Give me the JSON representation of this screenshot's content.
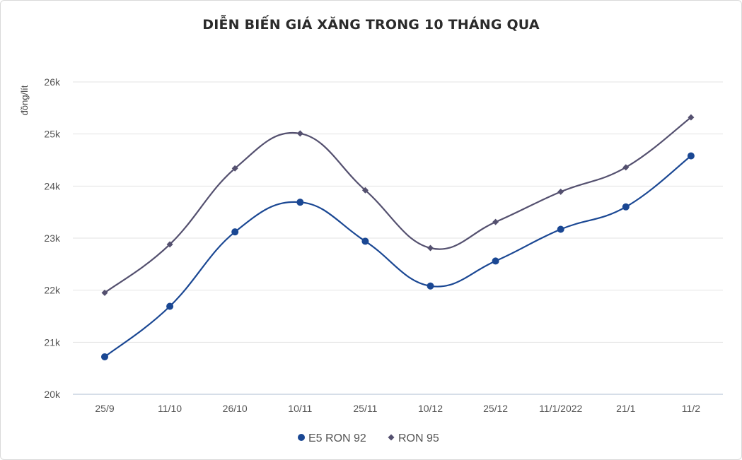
{
  "chart_data": {
    "type": "line",
    "title": "DIỄN BIẾN GIÁ XĂNG TRONG 10 THÁNG QUA",
    "xlabel": "",
    "ylabel": "đồng/lít",
    "categories": [
      "25/9",
      "11/10",
      "26/10",
      "10/11",
      "25/11",
      "10/12",
      "25/12",
      "11/1/2022",
      "21/1",
      "11/2"
    ],
    "ylim": [
      20000,
      26000
    ],
    "yticks": [
      {
        "value": 20000,
        "label": "20k"
      },
      {
        "value": 21000,
        "label": "21k"
      },
      {
        "value": 22000,
        "label": "22k"
      },
      {
        "value": 23000,
        "label": "23k"
      },
      {
        "value": 24000,
        "label": "24k"
      },
      {
        "value": 25000,
        "label": "25k"
      },
      {
        "value": 26000,
        "label": "26k"
      }
    ],
    "grid": true,
    "legend_position": "bottom",
    "series": [
      {
        "name": "E5 RON 92",
        "color": "#1a4793",
        "marker": "circle",
        "values": [
          20720,
          21690,
          23120,
          23690,
          22940,
          22080,
          22560,
          23170,
          23600,
          24580
        ]
      },
      {
        "name": "RON 95",
        "color": "#54506f",
        "marker": "diamond",
        "values": [
          21950,
          22880,
          24340,
          25010,
          23920,
          22810,
          23310,
          23890,
          24360,
          25320
        ]
      }
    ]
  }
}
